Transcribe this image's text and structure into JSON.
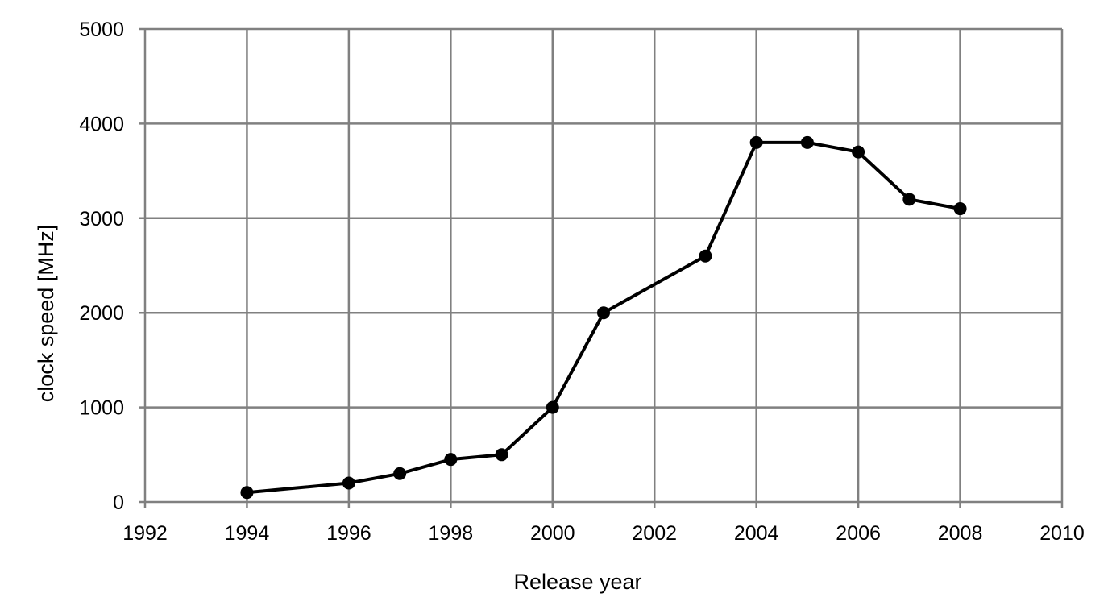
{
  "chart_data": {
    "type": "line",
    "title": "",
    "xlabel": "Release year",
    "ylabel": "clock speed [MHz]",
    "xlim": [
      1992,
      2010
    ],
    "ylim": [
      0,
      5000
    ],
    "x_ticks": [
      "1992",
      "1994",
      "1996",
      "1998",
      "2000",
      "2002",
      "2004",
      "2006",
      "2008",
      "2010"
    ],
    "y_ticks": [
      "0",
      "1000",
      "2000",
      "3000",
      "4000",
      "5000"
    ],
    "grid": true,
    "legend": "none",
    "series": [
      {
        "x": [
          1994,
          1995,
          1996,
          1997,
          1998,
          1999,
          2000,
          2001,
          2003,
          2004,
          2005,
          2006,
          2007,
          2008
        ],
        "y": [
          100,
          150,
          200,
          300,
          450,
          500,
          1000,
          2000,
          2600,
          3800,
          3800,
          3700,
          3200,
          3100
        ],
        "markers": [
          true,
          false,
          true,
          true,
          true,
          true,
          true,
          true,
          true,
          true,
          true,
          true,
          true,
          true
        ],
        "color": "#000000"
      }
    ],
    "colors": {
      "grid": "#808080",
      "line": "#000000",
      "background": "#ffffff"
    }
  }
}
